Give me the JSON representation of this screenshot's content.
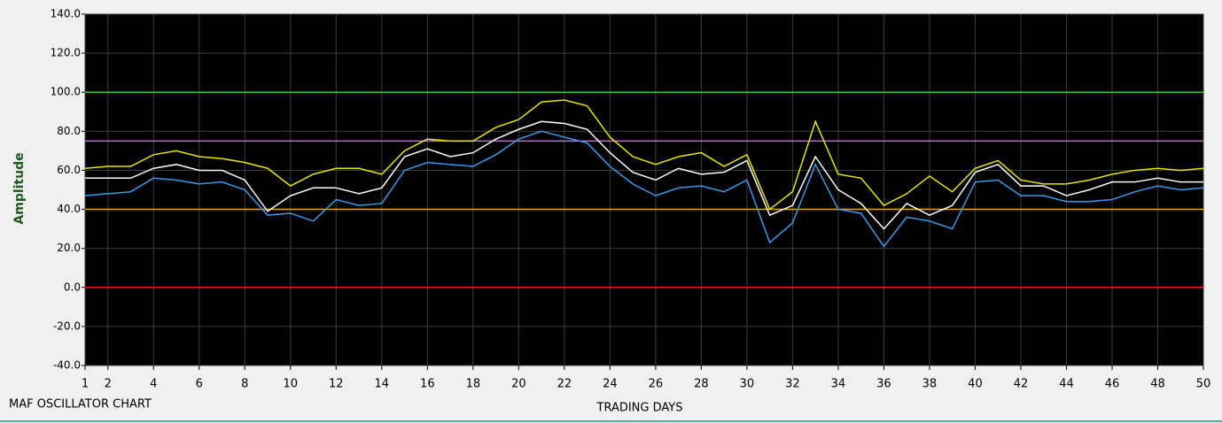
{
  "chart_data": {
    "type": "line",
    "title": "MAF OSCILLATOR CHART",
    "x_label": "TRADING DAYS",
    "y_label": "Amplitude",
    "x": [
      1,
      2,
      3,
      4,
      5,
      6,
      7,
      8,
      9,
      10,
      11,
      12,
      13,
      14,
      15,
      16,
      17,
      18,
      19,
      20,
      21,
      22,
      23,
      24,
      25,
      26,
      27,
      28,
      29,
      30,
      31,
      32,
      33,
      34,
      35,
      36,
      37,
      38,
      39,
      40,
      41,
      42,
      43,
      44,
      45,
      46,
      47,
      48,
      49,
      50
    ],
    "series": [
      {
        "color": "#e6e600",
        "values": [
          61,
          62,
          62,
          68,
          70,
          67,
          66,
          64,
          61,
          52,
          58,
          61,
          61,
          58,
          70,
          76,
          75,
          75,
          82,
          86,
          95,
          96,
          93,
          77,
          67,
          63,
          67,
          69,
          62,
          68,
          40,
          49,
          85,
          58,
          56,
          42,
          48,
          57,
          49,
          61,
          65,
          55,
          53,
          53,
          55,
          58,
          60,
          61,
          60,
          61
        ]
      },
      {
        "color": "#ffffff",
        "values": [
          56,
          56,
          56,
          61,
          63,
          60,
          60,
          55,
          39,
          47,
          51,
          51,
          48,
          51,
          67,
          71,
          67,
          69,
          76,
          81,
          85,
          84,
          81,
          69,
          59,
          55,
          61,
          58,
          59,
          65,
          37,
          42,
          67,
          50,
          43,
          30,
          43,
          37,
          42,
          59,
          63,
          52,
          52,
          47,
          50,
          54,
          54,
          56,
          54,
          54
        ]
      },
      {
        "color": "#3a9ae8",
        "values": [
          47,
          48,
          49,
          56,
          55,
          53,
          54,
          50,
          37,
          38,
          34,
          45,
          42,
          43,
          60,
          64,
          63,
          62,
          68,
          76,
          80,
          77,
          74,
          62,
          53,
          47,
          51,
          52,
          49,
          55,
          23,
          33,
          63,
          40,
          38,
          21,
          36,
          34,
          30,
          54,
          55,
          47,
          47,
          44,
          44,
          45,
          49,
          52,
          50,
          51
        ]
      }
    ],
    "reference_lines": [
      {
        "value": 100,
        "color": "#3cc83c"
      },
      {
        "value": 75,
        "color": "#c864e6"
      },
      {
        "value": 40,
        "color": "#f0a040"
      },
      {
        "value": 0,
        "color": "#e61e1e"
      }
    ],
    "xlim": [
      1,
      50
    ],
    "xticks": [
      1,
      2,
      4,
      6,
      8,
      10,
      12,
      14,
      16,
      18,
      20,
      22,
      24,
      26,
      28,
      30,
      32,
      34,
      36,
      38,
      40,
      42,
      44,
      46,
      48,
      50
    ],
    "ylim": [
      -40,
      140
    ],
    "yticks": [
      {
        "value": -40,
        "label": "-40.0"
      },
      {
        "value": -20,
        "label": "-20.0"
      },
      {
        "value": 0,
        "label": "0.0"
      },
      {
        "value": 20,
        "label": "20.0"
      },
      {
        "value": 40,
        "label": "40.0"
      },
      {
        "value": 60,
        "label": "60.0"
      },
      {
        "value": 80,
        "label": "80.0"
      },
      {
        "value": 100,
        "label": "100.0"
      },
      {
        "value": 120,
        "label": "120.0"
      },
      {
        "value": 140,
        "label": "140.0"
      }
    ],
    "grid": true,
    "background": "#000000"
  }
}
